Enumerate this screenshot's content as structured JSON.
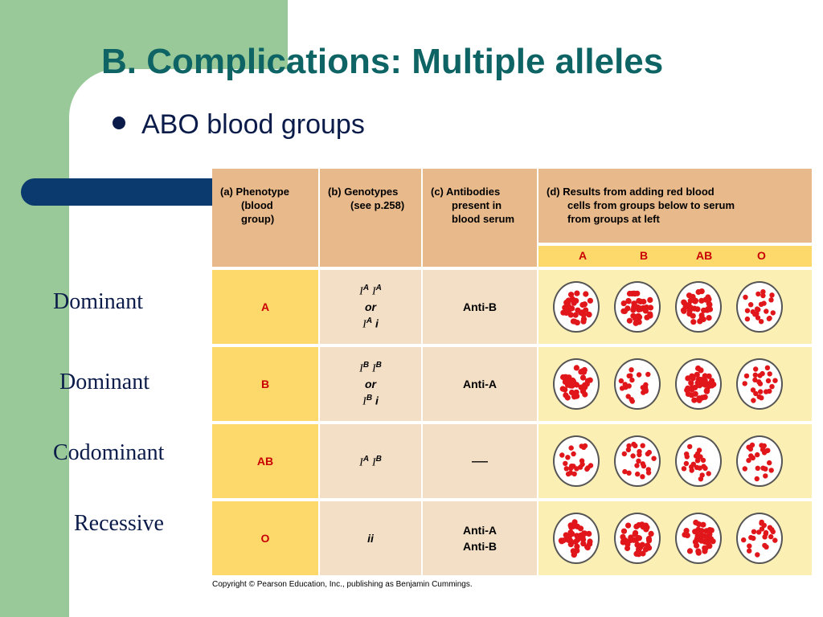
{
  "slide": {
    "title": "B. Complications: Multiple alleles",
    "bullet": "ABO blood groups"
  },
  "side_labels": [
    "Dominant",
    "Dominant",
    "Codominant",
    "Recessive"
  ],
  "table": {
    "headers": {
      "a": [
        "(a) Phenotype",
        "(blood",
        "group)"
      ],
      "b": [
        "(b)  Genotypes",
        "(see p.258)"
      ],
      "c": [
        "(c) Antibodies",
        "present in",
        "blood serum"
      ],
      "d": [
        "(d) Results from adding red blood",
        "cells from groups below to serum",
        "from groups at left"
      ]
    },
    "donor_groups": [
      "A",
      "B",
      "AB",
      "O"
    ],
    "rows": [
      {
        "phenotype": "A",
        "genotype_line1": "I",
        "genotype_sup1": "A",
        "genotype_mid": "I",
        "genotype_sup2": "A",
        "or": "or",
        "genotype_line2": "I",
        "genotype_sup3": "A",
        "genotype_tail": "i",
        "antibody1": "Anti-B",
        "antibody2": "",
        "results": [
          "clumped",
          "clumped",
          "clumped",
          "no"
        ]
      },
      {
        "phenotype": "B",
        "genotype_line1": "I",
        "genotype_sup1": "B",
        "genotype_mid": "I",
        "genotype_sup2": "B",
        "or": "or",
        "genotype_line2": "I",
        "genotype_sup3": "B",
        "genotype_tail": "i",
        "antibody1": "Anti-A",
        "antibody2": "",
        "results": [
          "clumped",
          "no",
          "clumped",
          "no"
        ]
      },
      {
        "phenotype": "AB",
        "genotype_line1": "I",
        "genotype_sup1": "A",
        "genotype_mid": "I",
        "genotype_sup2": "B",
        "or": "",
        "genotype_line2": "",
        "genotype_sup3": "",
        "genotype_tail": "",
        "antibody1": "—",
        "antibody2": "",
        "results": [
          "no",
          "no",
          "no",
          "no"
        ]
      },
      {
        "phenotype": "O",
        "genotype_text": "ii",
        "antibody1": "Anti-A",
        "antibody2": "Anti-B",
        "results": [
          "clumped",
          "clumped",
          "clumped",
          "no"
        ]
      }
    ]
  },
  "copyright": "Copyright © Pearson Education, Inc., publishing as Benjamin Cummings.",
  "colors": {
    "title": "#0e6464",
    "accent_green": "#99c999",
    "tab_blue": "#0b3a6e",
    "blood_red": "#e0161b"
  }
}
